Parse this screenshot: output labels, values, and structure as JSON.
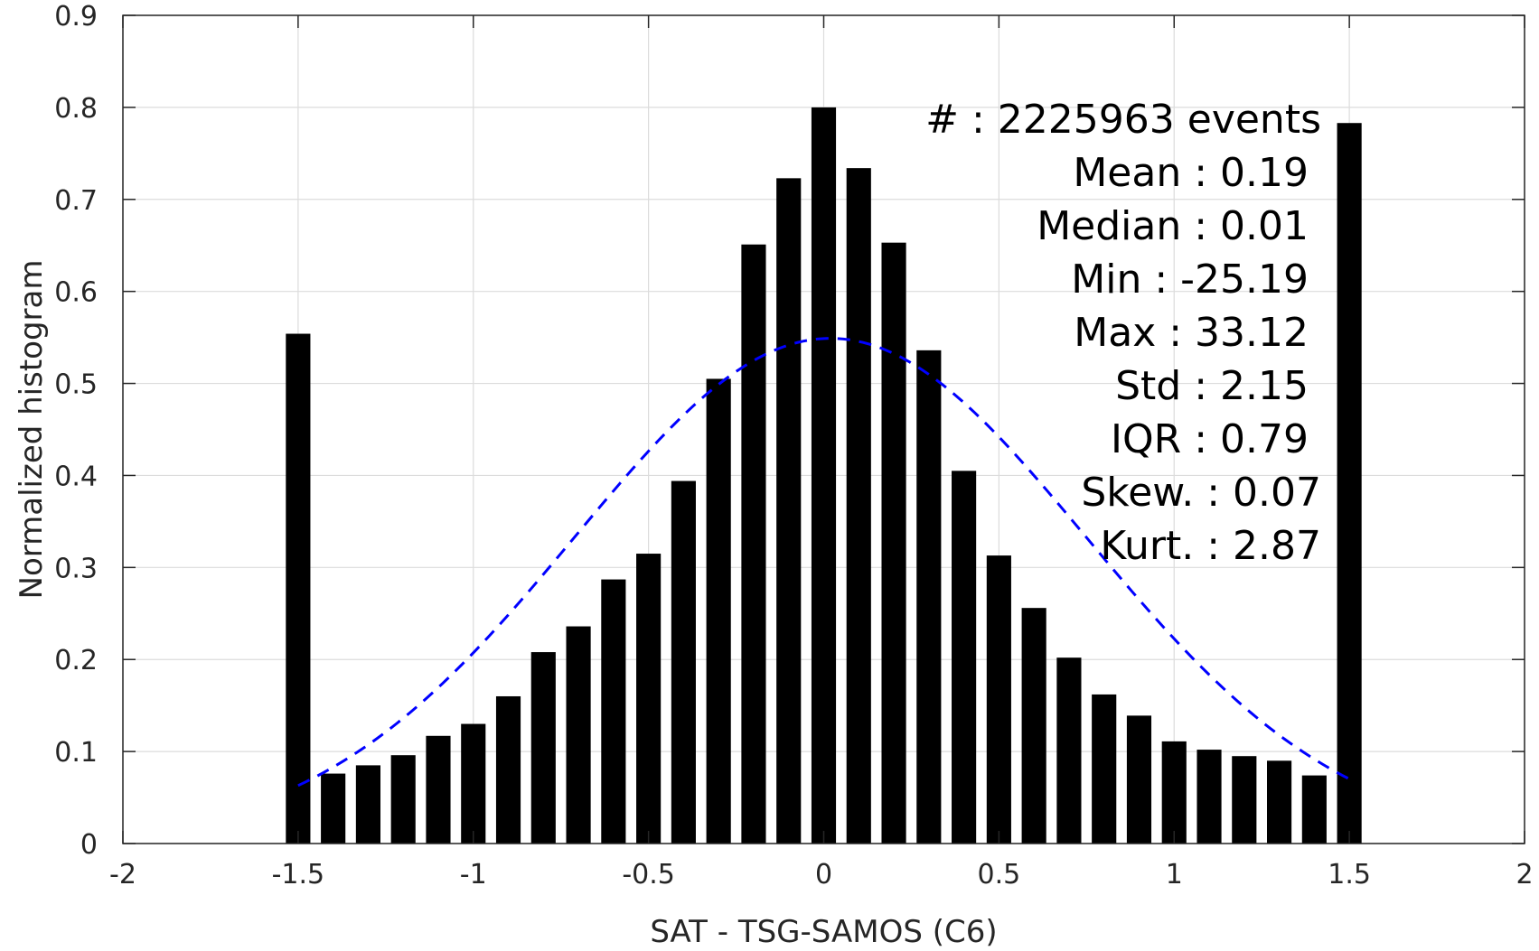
{
  "chart_data": {
    "type": "bar",
    "xlabel": "SAT - TSG-SAMOS (C6)",
    "ylabel": "Normalized histogram",
    "xlim": [
      -2,
      2
    ],
    "ylim": [
      0,
      0.9
    ],
    "grid": true,
    "x_ticks": [
      "-2",
      "-1.5",
      "-1",
      "-0.5",
      "0",
      "0.5",
      "1",
      "1.5",
      "2"
    ],
    "y_ticks": [
      "0",
      "0.1",
      "0.2",
      "0.3",
      "0.4",
      "0.5",
      "0.6",
      "0.7",
      "0.8",
      "0.9"
    ],
    "x_tick_values": [
      -2,
      -1.5,
      -1,
      -0.5,
      0,
      0.5,
      1,
      1.5,
      2
    ],
    "y_tick_values": [
      0,
      0.1,
      0.2,
      0.3,
      0.4,
      0.5,
      0.6,
      0.7,
      0.8,
      0.9
    ],
    "bar_width": 0.07,
    "bins": [
      {
        "x": -1.5,
        "y": 0.554
      },
      {
        "x": -1.4,
        "y": 0.076
      },
      {
        "x": -1.3,
        "y": 0.085
      },
      {
        "x": -1.2,
        "y": 0.096
      },
      {
        "x": -1.1,
        "y": 0.117
      },
      {
        "x": -1.0,
        "y": 0.13
      },
      {
        "x": -0.9,
        "y": 0.16
      },
      {
        "x": -0.8,
        "y": 0.208
      },
      {
        "x": -0.7,
        "y": 0.236
      },
      {
        "x": -0.6,
        "y": 0.287
      },
      {
        "x": -0.5,
        "y": 0.315
      },
      {
        "x": -0.4,
        "y": 0.394
      },
      {
        "x": -0.3,
        "y": 0.505
      },
      {
        "x": -0.2,
        "y": 0.651
      },
      {
        "x": -0.1,
        "y": 0.723
      },
      {
        "x": 0.0,
        "y": 0.8
      },
      {
        "x": 0.1,
        "y": 0.734
      },
      {
        "x": 0.2,
        "y": 0.653
      },
      {
        "x": 0.3,
        "y": 0.536
      },
      {
        "x": 0.4,
        "y": 0.405
      },
      {
        "x": 0.5,
        "y": 0.313
      },
      {
        "x": 0.6,
        "y": 0.256
      },
      {
        "x": 0.7,
        "y": 0.202
      },
      {
        "x": 0.8,
        "y": 0.162
      },
      {
        "x": 0.9,
        "y": 0.139
      },
      {
        "x": 1.0,
        "y": 0.111
      },
      {
        "x": 1.1,
        "y": 0.102
      },
      {
        "x": 1.2,
        "y": 0.095
      },
      {
        "x": 1.3,
        "y": 0.09
      },
      {
        "x": 1.4,
        "y": 0.074
      },
      {
        "x": 1.5,
        "y": 0.783
      }
    ],
    "fit_curve": {
      "style": "dashed",
      "color": "#0000ff",
      "mean": 0.019,
      "std": 0.73,
      "peak": 0.549,
      "x_range": [
        -1.5,
        1.5
      ]
    },
    "bar_color": "#000000",
    "annotation": {
      "placement": "top-right",
      "lines": [
        "#  : 2225963 events",
        "Mean : 0.19",
        "Median : 0.01",
        "Min : -25.19",
        "Max : 33.12",
        "Std : 2.15",
        "IQR : 0.79",
        "Skew. : 0.07",
        "Kurt. : 2.87"
      ]
    }
  }
}
